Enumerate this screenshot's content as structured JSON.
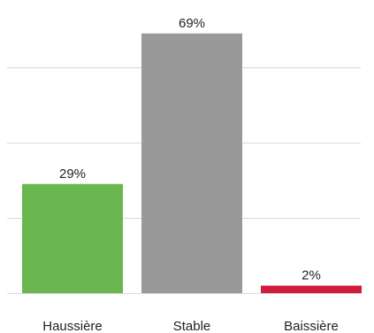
{
  "chart_data": {
    "type": "bar",
    "categories": [
      "Haussière",
      "Stable",
      "Baissière"
    ],
    "values": [
      29,
      69,
      2
    ],
    "data_labels": [
      "29%",
      "69%",
      "2%"
    ],
    "colors": [
      "#6ab750",
      "#999999",
      "#d21c3d"
    ],
    "ylim": [
      0,
      70
    ],
    "grid": true,
    "legend": "none"
  }
}
